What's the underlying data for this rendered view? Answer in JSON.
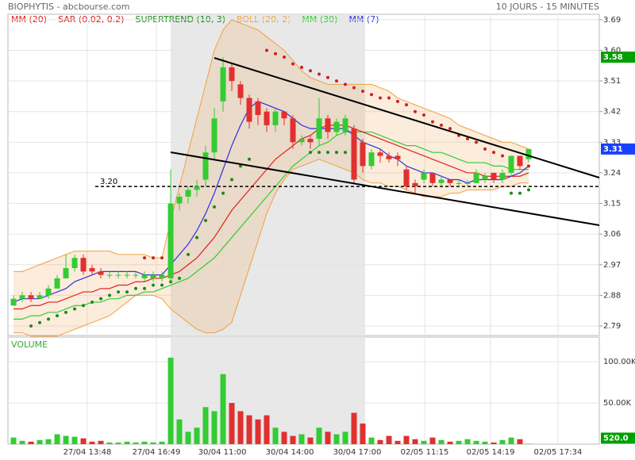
{
  "chart_data": {
    "type": "candlestick",
    "title": "BIOPHYTIS - abcbourse.com",
    "period": "10 JOURS - 15 MINUTES",
    "indicators": [
      {
        "name": "MM (20)",
        "color": "#e02020"
      },
      {
        "name": "SAR (0.02, 0.2)",
        "color": "#d02020"
      },
      {
        "name": "SUPERTREND (10, 3)",
        "color": "#1a8a1a"
      },
      {
        "name": "BOLL (20, 2)",
        "color": "#f0a040"
      },
      {
        "name": "MM (30)",
        "color": "#33cc33"
      },
      {
        "name": "MM (7)",
        "color": "#3030e0"
      }
    ],
    "open": [
      2.85,
      2.87,
      2.88,
      2.87,
      2.88,
      2.9,
      2.93,
      2.96,
      2.99,
      2.96,
      2.95,
      2.94,
      2.94,
      2.94,
      2.94,
      2.93,
      2.93,
      2.93,
      2.93,
      3.15,
      3.17,
      3.19,
      3.22,
      3.3,
      3.45,
      3.55,
      3.5,
      3.46,
      3.45,
      3.42,
      3.38,
      3.42,
      3.4,
      3.33,
      3.34,
      3.34,
      3.4,
      3.36,
      3.36,
      3.37,
      3.33,
      3.26,
      3.3,
      3.29,
      3.29,
      3.25,
      3.21,
      3.22,
      3.24,
      3.21,
      3.22,
      3.21,
      3.21,
      3.21,
      3.22,
      3.24,
      3.22,
      3.24,
      3.29,
      3.28
    ],
    "high": [
      2.88,
      2.89,
      2.89,
      2.89,
      2.91,
      2.94,
      3.0,
      3.0,
      3.0,
      2.97,
      2.96,
      2.95,
      2.95,
      2.95,
      2.95,
      2.95,
      2.95,
      2.95,
      3.25,
      3.18,
      3.2,
      3.22,
      3.32,
      3.43,
      3.58,
      3.56,
      3.51,
      3.47,
      3.46,
      3.43,
      3.43,
      3.42,
      3.41,
      3.35,
      3.35,
      3.46,
      3.41,
      3.4,
      3.41,
      3.38,
      3.34,
      3.31,
      3.31,
      3.3,
      3.3,
      3.26,
      3.22,
      3.25,
      3.24,
      3.23,
      3.22,
      3.22,
      3.22,
      3.25,
      3.24,
      3.24,
      3.25,
      3.29,
      3.29,
      3.31
    ],
    "low": [
      2.85,
      2.86,
      2.86,
      2.87,
      2.87,
      2.9,
      2.93,
      2.95,
      2.94,
      2.94,
      2.93,
      2.93,
      2.93,
      2.93,
      2.93,
      2.92,
      2.92,
      2.92,
      2.92,
      3.13,
      3.15,
      3.17,
      3.2,
      3.28,
      3.42,
      3.48,
      3.44,
      3.37,
      3.38,
      3.36,
      3.36,
      3.38,
      3.31,
      3.32,
      3.31,
      3.32,
      3.34,
      3.35,
      3.35,
      3.21,
      3.24,
      3.25,
      3.27,
      3.27,
      3.26,
      3.19,
      3.18,
      3.21,
      3.2,
      3.2,
      3.2,
      3.2,
      3.2,
      3.21,
      3.21,
      3.21,
      3.21,
      3.23,
      3.25,
      3.27
    ],
    "close": [
      2.87,
      2.88,
      2.87,
      2.88,
      2.9,
      2.93,
      2.96,
      2.99,
      2.95,
      2.95,
      2.94,
      2.94,
      2.94,
      2.94,
      2.94,
      2.94,
      2.94,
      2.94,
      3.15,
      3.17,
      3.19,
      3.2,
      3.3,
      3.4,
      3.55,
      3.51,
      3.46,
      3.39,
      3.41,
      3.38,
      3.42,
      3.4,
      3.33,
      3.34,
      3.33,
      3.4,
      3.36,
      3.39,
      3.4,
      3.22,
      3.26,
      3.3,
      3.29,
      3.28,
      3.28,
      3.2,
      3.2,
      3.24,
      3.21,
      3.22,
      3.21,
      3.21,
      3.21,
      3.24,
      3.23,
      3.22,
      3.24,
      3.29,
      3.26,
      3.31
    ],
    "volume": [
      8000,
      4000,
      3000,
      5000,
      6000,
      12000,
      10000,
      9000,
      7000,
      3000,
      4000,
      2000,
      2000,
      3000,
      2000,
      3000,
      2000,
      3000,
      105000,
      30000,
      15000,
      20000,
      45000,
      40000,
      85000,
      50000,
      40000,
      35000,
      30000,
      35000,
      20000,
      15000,
      10000,
      12000,
      8000,
      20000,
      15000,
      12000,
      15000,
      38000,
      25000,
      8000,
      5000,
      10000,
      4000,
      10000,
      6000,
      4000,
      8000,
      5000,
      3000,
      4000,
      6000,
      4000,
      3000,
      2000,
      5000,
      8000,
      6000,
      520
    ],
    "mm7": [
      2.86,
      2.87,
      2.87,
      2.87,
      2.88,
      2.89,
      2.9,
      2.92,
      2.93,
      2.94,
      2.95,
      2.95,
      2.95,
      2.95,
      2.95,
      2.94,
      2.94,
      2.94,
      2.97,
      3.0,
      3.03,
      3.07,
      3.12,
      3.18,
      3.25,
      3.32,
      3.38,
      3.43,
      3.45,
      3.44,
      3.43,
      3.42,
      3.4,
      3.38,
      3.37,
      3.37,
      3.37,
      3.37,
      3.37,
      3.35,
      3.33,
      3.32,
      3.31,
      3.29,
      3.28,
      3.26,
      3.25,
      3.24,
      3.24,
      3.23,
      3.22,
      3.22,
      3.21,
      3.22,
      3.22,
      3.22,
      3.22,
      3.23,
      3.24,
      3.26
    ],
    "mm20": [
      2.84,
      2.84,
      2.85,
      2.85,
      2.86,
      2.86,
      2.87,
      2.88,
      2.89,
      2.89,
      2.9,
      2.9,
      2.91,
      2.91,
      2.92,
      2.92,
      2.93,
      2.93,
      2.94,
      2.95,
      2.97,
      2.99,
      3.02,
      3.05,
      3.09,
      3.13,
      3.16,
      3.19,
      3.22,
      3.25,
      3.28,
      3.3,
      3.32,
      3.34,
      3.35,
      3.37,
      3.38,
      3.38,
      3.38,
      3.37,
      3.36,
      3.35,
      3.34,
      3.33,
      3.32,
      3.31,
      3.3,
      3.29,
      3.28,
      3.27,
      3.26,
      3.25,
      3.24,
      3.24,
      3.23,
      3.23,
      3.23,
      3.23,
      3.23,
      3.24
    ],
    "mm30": [
      2.81,
      2.81,
      2.82,
      2.82,
      2.83,
      2.83,
      2.84,
      2.85,
      2.85,
      2.86,
      2.86,
      2.87,
      2.87,
      2.88,
      2.88,
      2.89,
      2.89,
      2.9,
      2.91,
      2.92,
      2.93,
      2.95,
      2.97,
      2.99,
      3.02,
      3.05,
      3.08,
      3.11,
      3.14,
      3.17,
      3.2,
      3.23,
      3.26,
      3.28,
      3.3,
      3.32,
      3.33,
      3.35,
      3.36,
      3.36,
      3.36,
      3.36,
      3.35,
      3.34,
      3.33,
      3.32,
      3.32,
      3.31,
      3.3,
      3.3,
      3.29,
      3.28,
      3.27,
      3.27,
      3.27,
      3.26,
      3.26,
      3.25,
      3.25,
      3.25
    ],
    "boll_upper": [
      2.95,
      2.95,
      2.96,
      2.97,
      2.98,
      2.99,
      3.0,
      3.01,
      3.01,
      3.01,
      3.01,
      3.01,
      3.0,
      3.0,
      3.0,
      3.0,
      2.99,
      2.99,
      3.1,
      3.2,
      3.3,
      3.4,
      3.5,
      3.6,
      3.66,
      3.69,
      3.68,
      3.67,
      3.66,
      3.64,
      3.62,
      3.6,
      3.57,
      3.54,
      3.52,
      3.51,
      3.5,
      3.5,
      3.5,
      3.5,
      3.5,
      3.5,
      3.49,
      3.48,
      3.46,
      3.45,
      3.44,
      3.43,
      3.42,
      3.41,
      3.4,
      3.38,
      3.37,
      3.36,
      3.35,
      3.34,
      3.33,
      3.33,
      3.32,
      3.31
    ],
    "boll_lower": [
      2.77,
      2.77,
      2.76,
      2.76,
      2.76,
      2.76,
      2.77,
      2.78,
      2.79,
      2.8,
      2.81,
      2.82,
      2.84,
      2.86,
      2.88,
      2.88,
      2.88,
      2.87,
      2.84,
      2.82,
      2.8,
      2.78,
      2.77,
      2.77,
      2.78,
      2.8,
      2.88,
      2.96,
      3.04,
      3.12,
      3.18,
      3.22,
      3.25,
      3.26,
      3.27,
      3.28,
      3.27,
      3.26,
      3.25,
      3.24,
      3.22,
      3.21,
      3.21,
      3.2,
      3.2,
      3.19,
      3.18,
      3.17,
      3.17,
      3.17,
      3.18,
      3.18,
      3.19,
      3.19,
      3.19,
      3.19,
      3.2,
      3.2,
      3.21,
      3.21
    ],
    "sar": [
      null,
      null,
      null,
      null,
      null,
      null,
      null,
      null,
      null,
      null,
      null,
      null,
      null,
      null,
      null,
      2.99,
      2.99,
      2.99,
      null,
      null,
      null,
      null,
      null,
      null,
      null,
      null,
      null,
      null,
      null,
      3.6,
      3.59,
      3.58,
      3.56,
      3.55,
      3.54,
      3.53,
      3.52,
      3.51,
      3.5,
      3.49,
      3.48,
      3.47,
      3.46,
      3.46,
      3.45,
      3.44,
      3.42,
      3.41,
      3.39,
      3.38,
      3.37,
      3.35,
      3.34,
      3.33,
      3.31,
      3.3,
      3.29,
      3.28,
      3.27,
      3.26
    ],
    "supertrend": [
      null,
      null,
      2.79,
      2.8,
      2.81,
      2.82,
      2.83,
      2.84,
      2.85,
      2.86,
      2.87,
      2.88,
      2.89,
      2.89,
      2.9,
      2.9,
      2.91,
      2.91,
      2.92,
      2.93,
      3.0,
      3.05,
      3.1,
      3.14,
      3.18,
      3.22,
      3.26,
      3.28,
      null,
      null,
      null,
      null,
      null,
      null,
      3.3,
      3.3,
      3.3,
      3.3,
      3.3,
      null,
      null,
      null,
      null,
      null,
      null,
      null,
      null,
      null,
      null,
      null,
      null,
      null,
      null,
      null,
      null,
      null,
      null,
      3.18,
      3.18,
      3.19
    ],
    "xlim": [
      -0.64,
      67.09
    ],
    "xticks": [
      {
        "value": 8.45,
        "label": "27/04 13:48"
      },
      {
        "value": 16.36,
        "label": "27/04 16:49"
      },
      {
        "value": 23.91,
        "label": "30/04 11:00"
      },
      {
        "value": 31.64,
        "label": "30/04 14:00"
      },
      {
        "value": 39.36,
        "label": "30/04 17:00"
      },
      {
        "value": 47.09,
        "label": "02/05 11:15"
      },
      {
        "value": 54.64,
        "label": "02/05 14:19"
      },
      {
        "value": 62.36,
        "label": "02/05 17:34"
      }
    ],
    "ylim": [
      2.762,
      3.706
    ],
    "yticks": [
      3.69,
      {
        "value": 3.6,
        "label": "3.60"
      },
      3.51,
      3.42,
      3.33,
      3.24,
      3.15,
      3.06,
      2.97,
      2.88,
      2.79
    ],
    "level": {
      "value": 3.2,
      "label": "3.20"
    },
    "price_tags": [
      {
        "value": 3.58,
        "label": "3.58",
        "color": "#00a000"
      },
      {
        "value": 3.31,
        "label": "3.31",
        "color": "#1a40ff"
      }
    ],
    "volume_title": "VOLUME",
    "volume_ylim": [
      0,
      130000
    ],
    "volume_yticks": [
      {
        "value": 100000,
        "label": "100.00K"
      },
      {
        "value": 50000,
        "label": "50.00K"
      }
    ],
    "volume_tag": {
      "value": 520,
      "label": "520.0",
      "color": "#00a000"
    },
    "grid": true,
    "up_color": "#33cc33",
    "down_color": "#e03030"
  }
}
